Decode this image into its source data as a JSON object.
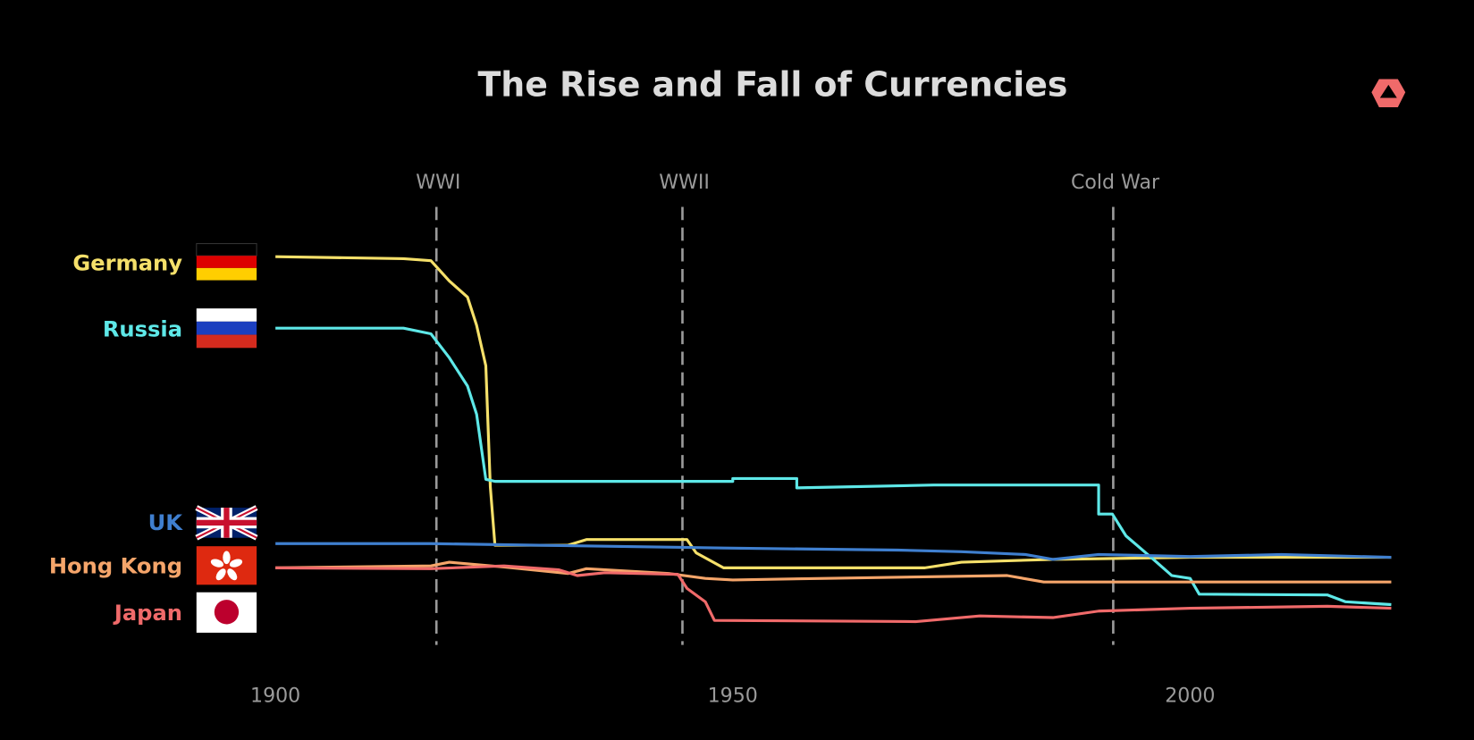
{
  "chart_data": {
    "type": "line",
    "title": "The Rise and Fall of Currencies",
    "xlim": [
      1900,
      2022
    ],
    "xticks": [
      1900,
      1950,
      2000
    ],
    "ylim": [
      0,
      100
    ],
    "grid": false,
    "annotations": [
      {
        "label": "WWI",
        "x": 1917.6
      },
      {
        "label": "WWII",
        "x": 1944.5
      },
      {
        "label": "Cold War",
        "x": 1991.6
      }
    ],
    "series": [
      {
        "name": "Germany",
        "color": "#f5e06a",
        "x": [
          1900,
          1914,
          1917,
          1919,
          1921,
          1922,
          1923,
          1923.5,
          1924,
          1932,
          1934,
          1945,
          1946,
          1949,
          1971,
          1975,
          1985,
          2000,
          2022
        ],
        "values": [
          97,
          96.5,
          96,
          91,
          87,
          80,
          70,
          40,
          25.6,
          25.6,
          27,
          27,
          23.7,
          20,
          20,
          21.4,
          22.1,
          22.6,
          22.6
        ]
      },
      {
        "name": "Russia",
        "color": "#5ee8e8",
        "x": [
          1900,
          1914,
          1917,
          1919,
          1921,
          1922,
          1923,
          1924,
          1950,
          1950,
          1957,
          1957,
          1972,
          1990,
          1990,
          1991.5,
          1993,
          1996,
          1998,
          2000,
          2001,
          2015,
          2017,
          2022
        ],
        "values": [
          79.3,
          79.3,
          77.9,
          72,
          65,
          58,
          41.9,
          41.4,
          41.4,
          42.1,
          42.1,
          39.8,
          40.5,
          40.5,
          33.3,
          33.3,
          27.9,
          22.1,
          18.1,
          17.4,
          13.5,
          13.3,
          11.6,
          10.9
        ]
      },
      {
        "name": "UK",
        "color": "#3f7fcf",
        "x": [
          1900,
          1917,
          1949,
          1968,
          1975,
          1982,
          1985,
          1990,
          2000,
          2010,
          2022
        ],
        "values": [
          26,
          26,
          24.9,
          24.4,
          24,
          23.3,
          22.1,
          23.3,
          22.8,
          23.3,
          22.6
        ]
      },
      {
        "name": "Hong Kong",
        "color": "#f5a56a",
        "x": [
          1900,
          1917,
          1919,
          1925,
          1932,
          1934,
          1943,
          1947,
          1950,
          1960,
          1980,
          1984,
          2022
        ],
        "values": [
          20,
          20.5,
          21.4,
          20.2,
          18.6,
          19.8,
          18.6,
          17.4,
          17,
          17.4,
          18.1,
          16.5,
          16.5
        ]
      },
      {
        "name": "Japan",
        "color": "#f06a6a",
        "x": [
          1900,
          1917,
          1925,
          1931,
          1933,
          1936,
          1944,
          1945,
          1947,
          1948,
          1970,
          1977,
          1985,
          1990,
          2000,
          2015,
          2022
        ],
        "values": [
          20,
          19.8,
          20.5,
          19.5,
          18.1,
          18.8,
          18.4,
          14.9,
          11.6,
          7,
          6.7,
          8.1,
          7.7,
          9.3,
          10,
          10.5,
          10
        ]
      }
    ]
  }
}
